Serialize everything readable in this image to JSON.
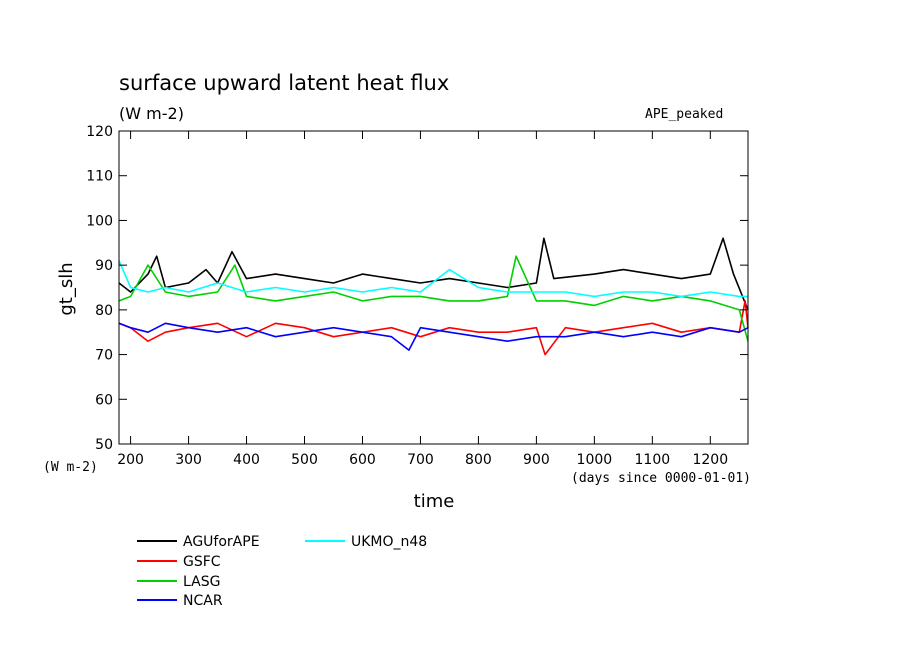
{
  "chart_data": {
    "type": "line",
    "title": "surface upward latent heat flux",
    "subtitle": "(W m-2)",
    "experiment": "APE_peaked",
    "ylabel": "gt_slh",
    "yunits": "(W m-2)",
    "xlabel": "time",
    "xunits": "(days since 0000-01-01)",
    "xlim": [
      180,
      1265
    ],
    "ylim": [
      50,
      120
    ],
    "xticks": [
      200,
      300,
      400,
      500,
      600,
      700,
      800,
      900,
      1000,
      1100,
      1200
    ],
    "yticks": [
      50,
      60,
      70,
      80,
      90,
      100,
      110,
      120
    ],
    "grid": false,
    "legend_position": "bottom-left, below plot",
    "series": [
      {
        "name": "AGUforAPE",
        "color": "#000000",
        "x": [
          180,
          200,
          230,
          245,
          260,
          300,
          330,
          350,
          375,
          400,
          450,
          500,
          550,
          600,
          650,
          700,
          750,
          800,
          850,
          900,
          913,
          930,
          1000,
          1050,
          1100,
          1150,
          1200,
          1222,
          1240,
          1265
        ],
        "y": [
          86,
          84,
          88,
          92,
          85,
          86,
          89,
          86,
          93,
          87,
          88,
          87,
          86,
          88,
          87,
          86,
          87,
          86,
          85,
          86,
          96,
          87,
          88,
          89,
          88,
          87,
          88,
          96,
          88,
          80
        ]
      },
      {
        "name": "GSFC",
        "color": "#ff0000",
        "x": [
          180,
          200,
          230,
          260,
          300,
          350,
          400,
          450,
          500,
          550,
          600,
          650,
          700,
          750,
          800,
          850,
          900,
          915,
          950,
          1000,
          1050,
          1100,
          1150,
          1200,
          1250,
          1260,
          1265
        ],
        "y": [
          77,
          76,
          73,
          75,
          76,
          77,
          74,
          77,
          76,
          74,
          75,
          76,
          74,
          76,
          75,
          75,
          76,
          70,
          76,
          75,
          76,
          77,
          75,
          76,
          75,
          82,
          76
        ]
      },
      {
        "name": "LASG",
        "color": "#00d000",
        "x": [
          180,
          200,
          230,
          260,
          300,
          350,
          380,
          400,
          450,
          500,
          550,
          600,
          650,
          700,
          750,
          800,
          850,
          865,
          900,
          950,
          1000,
          1050,
          1100,
          1150,
          1200,
          1250,
          1265
        ],
        "y": [
          82,
          83,
          90,
          84,
          83,
          84,
          90,
          83,
          82,
          83,
          84,
          82,
          83,
          83,
          82,
          82,
          83,
          92,
          82,
          82,
          81,
          83,
          82,
          83,
          82,
          80,
          73
        ]
      },
      {
        "name": "NCAR",
        "color": "#0000ff",
        "x": [
          180,
          200,
          230,
          260,
          300,
          350,
          400,
          450,
          500,
          550,
          600,
          650,
          680,
          700,
          750,
          800,
          850,
          900,
          950,
          1000,
          1050,
          1100,
          1150,
          1200,
          1250,
          1265
        ],
        "y": [
          77,
          76,
          75,
          77,
          76,
          75,
          76,
          74,
          75,
          76,
          75,
          74,
          71,
          76,
          75,
          74,
          73,
          74,
          74,
          75,
          74,
          75,
          74,
          76,
          75,
          76
        ]
      },
      {
        "name": "UKMO_n48",
        "color": "#00ffff",
        "x": [
          180,
          200,
          230,
          260,
          300,
          350,
          400,
          450,
          500,
          550,
          600,
          650,
          700,
          750,
          800,
          850,
          900,
          950,
          1000,
          1050,
          1100,
          1150,
          1200,
          1250,
          1265
        ],
        "y": [
          91,
          85,
          84,
          85,
          84,
          86,
          84,
          85,
          84,
          85,
          84,
          85,
          84,
          89,
          85,
          84,
          84,
          84,
          83,
          84,
          84,
          83,
          84,
          83,
          83
        ]
      }
    ]
  }
}
